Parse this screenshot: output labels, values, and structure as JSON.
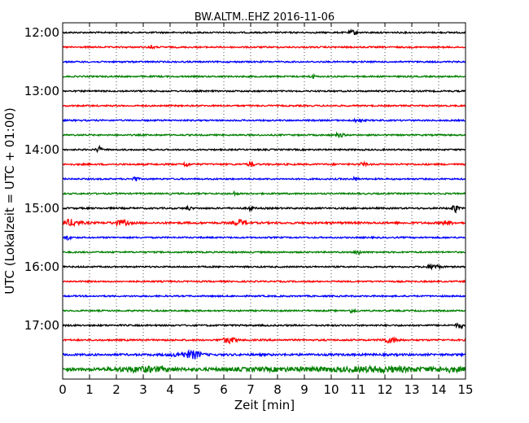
{
  "chart_data": {
    "type": "line",
    "title": "BW.ALTM..EHZ 2016-11-06",
    "xlabel": "Zeit  [min]",
    "ylabel": "UTC (Lokalzeit = UTC + 01:00)",
    "xlim": [
      0,
      15
    ],
    "x_ticks": [
      "0",
      "1",
      "2",
      "3",
      "4",
      "5",
      "6",
      "7",
      "8",
      "9",
      "10",
      "11",
      "12",
      "13",
      "14",
      "15"
    ],
    "y_ticks": [
      "12:00",
      "13:00",
      "14:00",
      "15:00",
      "16:00",
      "17:00"
    ],
    "grid": "vertical dotted",
    "trace_colors": [
      "#000000",
      "#ff0000",
      "#0000ff",
      "#008000"
    ],
    "traces": [
      {
        "start": "12:00",
        "color": "#000000",
        "noise": 0.9,
        "events": [
          [
            10.8,
            2.5,
            0.15
          ]
        ]
      },
      {
        "start": "12:15",
        "color": "#ff0000",
        "noise": 0.9,
        "events": [
          [
            3.3,
            2.0,
            0.1
          ]
        ]
      },
      {
        "start": "12:30",
        "color": "#0000ff",
        "noise": 0.9,
        "events": []
      },
      {
        "start": "12:45",
        "color": "#008000",
        "noise": 0.9,
        "events": [
          [
            9.3,
            2.0,
            0.1
          ]
        ]
      },
      {
        "start": "13:00",
        "color": "#000000",
        "noise": 0.9,
        "events": []
      },
      {
        "start": "13:15",
        "color": "#ff0000",
        "noise": 0.9,
        "events": []
      },
      {
        "start": "13:30",
        "color": "#0000ff",
        "noise": 0.9,
        "events": [
          [
            11.0,
            2.0,
            0.15
          ]
        ]
      },
      {
        "start": "13:45",
        "color": "#008000",
        "noise": 0.9,
        "events": [
          [
            10.3,
            2.5,
            0.15
          ]
        ]
      },
      {
        "start": "14:00",
        "color": "#000000",
        "noise": 0.9,
        "events": [
          [
            1.35,
            3.5,
            0.1
          ]
        ]
      },
      {
        "start": "14:15",
        "color": "#ff0000",
        "noise": 1.0,
        "events": [
          [
            4.6,
            3.0,
            0.1
          ],
          [
            7.0,
            3.5,
            0.1
          ],
          [
            11.2,
            2.5,
            0.1
          ]
        ]
      },
      {
        "start": "14:30",
        "color": "#0000ff",
        "noise": 0.9,
        "events": [
          [
            2.7,
            3.0,
            0.1
          ],
          [
            10.9,
            2.0,
            0.1
          ]
        ]
      },
      {
        "start": "14:45",
        "color": "#008000",
        "noise": 0.9,
        "events": [
          [
            6.4,
            2.0,
            0.1
          ]
        ]
      },
      {
        "start": "15:00",
        "color": "#000000",
        "noise": 1.0,
        "events": [
          [
            4.7,
            2.0,
            0.1
          ],
          [
            7.0,
            2.5,
            0.1
          ],
          [
            14.6,
            5.0,
            0.1
          ]
        ]
      },
      {
        "start": "15:15",
        "color": "#ff0000",
        "noise": 1.2,
        "events": [
          [
            0.3,
            3.5,
            0.35
          ],
          [
            2.2,
            2.5,
            0.3
          ],
          [
            6.6,
            3.5,
            0.2
          ],
          [
            14.3,
            2.0,
            0.2
          ]
        ]
      },
      {
        "start": "15:30",
        "color": "#0000ff",
        "noise": 0.9,
        "events": [
          [
            0.2,
            2.5,
            0.1
          ]
        ]
      },
      {
        "start": "15:45",
        "color": "#008000",
        "noise": 0.9,
        "events": [
          [
            11.0,
            3.0,
            0.1
          ]
        ]
      },
      {
        "start": "16:00",
        "color": "#000000",
        "noise": 0.9,
        "events": [
          [
            13.8,
            2.5,
            0.25
          ]
        ]
      },
      {
        "start": "16:15",
        "color": "#ff0000",
        "noise": 0.9,
        "events": []
      },
      {
        "start": "16:30",
        "color": "#0000ff",
        "noise": 0.9,
        "events": []
      },
      {
        "start": "16:45",
        "color": "#008000",
        "noise": 0.9,
        "events": [
          [
            10.8,
            2.5,
            0.1
          ]
        ]
      },
      {
        "start": "17:00",
        "color": "#000000",
        "noise": 1.0,
        "events": [
          [
            14.8,
            3.0,
            0.15
          ]
        ]
      },
      {
        "start": "17:15",
        "color": "#ff0000",
        "noise": 1.0,
        "events": [
          [
            6.2,
            3.5,
            0.25
          ],
          [
            12.2,
            3.0,
            0.3
          ]
        ]
      },
      {
        "start": "17:30",
        "color": "#0000ff",
        "noise": 1.3,
        "events": [
          [
            4.5,
            2.0,
            0.5
          ],
          [
            4.9,
            3.5,
            0.25
          ]
        ]
      },
      {
        "start": "17:45",
        "color": "#008000",
        "noise": 1.8,
        "events": [
          [
            3.0,
            2.5,
            1.0
          ],
          [
            8.5,
            1.2,
            2.5
          ],
          [
            12.0,
            2.2,
            1.5
          ],
          [
            14.4,
            2.0,
            0.6
          ]
        ]
      }
    ]
  }
}
